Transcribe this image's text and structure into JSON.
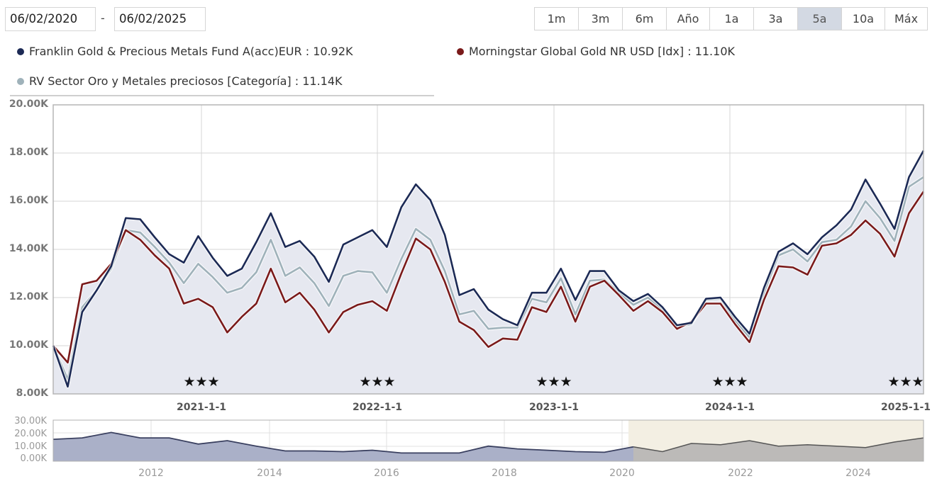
{
  "date_range": {
    "from": "06/02/2020",
    "separator": "-",
    "to": "06/02/2025"
  },
  "range_buttons": [
    {
      "label": "1m",
      "active": false
    },
    {
      "label": "3m",
      "active": false
    },
    {
      "label": "6m",
      "active": false
    },
    {
      "label": "Año",
      "active": false
    },
    {
      "label": "1a",
      "active": false
    },
    {
      "label": "3a",
      "active": false
    },
    {
      "label": "5a",
      "active": true
    },
    {
      "label": "10a",
      "active": false
    },
    {
      "label": "Máx",
      "active": false
    }
  ],
  "legend": [
    {
      "label": "Franklin Gold & Precious Metals Fund A(acc)EUR : 10.92K",
      "color": "#1c2a55"
    },
    {
      "label": "Morningstar Global Gold NR USD [Idx] : 11.10K",
      "color": "#7a1a1a"
    },
    {
      "label": "RV Sector Oro y Metales preciosos [Categoría] : 11.14K",
      "color": "#9fb2ba"
    }
  ],
  "star_rating": "★★★",
  "chart_data": [
    {
      "type": "line",
      "title": "",
      "xlabel": "",
      "ylabel": "",
      "ylim": [
        8000,
        20000
      ],
      "y_ticks": [
        "20.00K",
        "18.00K",
        "16.00K",
        "14.00K",
        "12.00K",
        "10.00K",
        "8.00K"
      ],
      "x_ticks": [
        "2021-1-1",
        "2022-1-1",
        "2023-1-1",
        "2024-1-1",
        "2025-1-1"
      ],
      "grid": true,
      "legend_position": "top",
      "annotations": [
        "★★★ rating markers near 2021-1-1, 2022-1-1, 2023-1-1, 2024-1-1, 2025-1-1"
      ],
      "x": [
        "2020-02",
        "2020-03",
        "2020-04",
        "2020-05",
        "2020-06",
        "2020-07",
        "2020-08",
        "2020-09",
        "2020-10",
        "2020-11",
        "2020-12",
        "2021-01",
        "2021-02",
        "2021-03",
        "2021-04",
        "2021-05",
        "2021-06",
        "2021-07",
        "2021-08",
        "2021-09",
        "2021-10",
        "2021-11",
        "2021-12",
        "2022-01",
        "2022-02",
        "2022-03",
        "2022-04",
        "2022-05",
        "2022-06",
        "2022-07",
        "2022-08",
        "2022-09",
        "2022-10",
        "2022-11",
        "2022-12",
        "2023-01",
        "2023-02",
        "2023-03",
        "2023-04",
        "2023-05",
        "2023-06",
        "2023-07",
        "2023-08",
        "2023-09",
        "2023-10",
        "2023-11",
        "2023-12",
        "2024-01",
        "2024-02",
        "2024-03",
        "2024-04",
        "2024-05",
        "2024-06",
        "2024-07",
        "2024-08",
        "2024-09",
        "2024-10",
        "2024-11",
        "2024-12",
        "2025-01",
        "2025-02"
      ],
      "series": [
        {
          "name": "Franklin Gold & Precious Metals Fund A(acc)EUR",
          "color": "#1c2a55",
          "values": [
            10.0,
            8.3,
            11.4,
            12.3,
            13.3,
            15.3,
            15.25,
            14.5,
            13.8,
            13.45,
            14.55,
            13.65,
            12.9,
            13.2,
            14.3,
            15.5,
            14.1,
            14.35,
            13.7,
            12.65,
            14.2,
            14.5,
            14.8,
            14.1,
            15.75,
            16.7,
            16.05,
            14.6,
            12.1,
            12.35,
            11.5,
            11.1,
            10.85,
            12.2,
            12.2,
            13.2,
            11.9,
            13.1,
            13.1,
            12.3,
            11.85,
            12.15,
            11.6,
            10.85,
            10.95,
            11.95,
            12.0,
            11.2,
            10.5,
            12.4,
            13.9,
            14.25,
            13.8,
            14.5,
            15.0,
            15.65,
            16.9,
            15.9,
            14.85,
            17.0,
            18.1
          ]
        },
        {
          "name": "Morningstar Global Gold NR USD [Idx]",
          "color": "#7a1a1a",
          "values": [
            10.0,
            9.3,
            12.55,
            12.7,
            13.4,
            14.8,
            14.4,
            13.75,
            13.2,
            11.75,
            11.95,
            11.6,
            10.55,
            11.2,
            11.75,
            13.2,
            11.8,
            12.2,
            11.5,
            10.55,
            11.4,
            11.7,
            11.85,
            11.45,
            13.0,
            14.45,
            14.0,
            12.65,
            11.0,
            10.65,
            9.95,
            10.3,
            10.25,
            11.6,
            11.4,
            12.45,
            11.0,
            12.45,
            12.7,
            12.1,
            11.45,
            11.85,
            11.4,
            10.7,
            11.0,
            11.75,
            11.75,
            10.9,
            10.15,
            11.9,
            13.3,
            13.25,
            12.95,
            14.15,
            14.25,
            14.6,
            15.2,
            14.65,
            13.7,
            15.5,
            16.4
          ]
        },
        {
          "name": "RV Sector Oro y Metales preciosos [Categoría]",
          "color": "#9fb2ba",
          "values": [
            10.0,
            8.6,
            11.6,
            12.3,
            13.2,
            14.8,
            14.7,
            14.1,
            13.45,
            12.6,
            13.4,
            12.85,
            12.2,
            12.4,
            13.05,
            14.4,
            12.9,
            13.25,
            12.6,
            11.65,
            12.9,
            13.1,
            13.05,
            12.2,
            13.6,
            14.85,
            14.4,
            13.1,
            11.3,
            11.45,
            10.7,
            10.75,
            10.75,
            11.95,
            11.8,
            12.8,
            11.3,
            12.7,
            12.75,
            12.2,
            11.7,
            12.0,
            11.5,
            10.75,
            10.9,
            11.9,
            11.95,
            11.05,
            10.35,
            12.2,
            13.75,
            14.0,
            13.5,
            14.3,
            14.4,
            14.95,
            16.0,
            15.3,
            14.35,
            16.6,
            17.0
          ]
        }
      ]
    },
    {
      "type": "area",
      "title": "navigator",
      "ylim": [
        0,
        30000
      ],
      "y_ticks": [
        "30.00K",
        "20.00K",
        "10.00K",
        "0.00K"
      ],
      "x_ticks": [
        "2012",
        "2014",
        "2016",
        "2018",
        "2020",
        "2022",
        "2024"
      ],
      "selected_range": [
        "2020-02",
        "2025-02"
      ],
      "x": [
        "2010-06",
        "2011-01",
        "2011-06",
        "2012-01",
        "2012-06",
        "2012-10",
        "2013-03",
        "2013-08",
        "2014-01",
        "2014-06",
        "2015-01",
        "2015-06",
        "2016-01",
        "2016-06",
        "2017-01",
        "2017-06",
        "2018-01",
        "2018-06",
        "2019-01",
        "2019-06",
        "2020-02",
        "2020-06",
        "2021-01",
        "2021-06",
        "2022-01",
        "2022-06",
        "2023-01",
        "2023-06",
        "2024-01",
        "2024-06",
        "2025-02"
      ],
      "values": [
        16,
        17,
        21,
        17,
        17,
        12.5,
        15,
        11,
        7.5,
        7.5,
        7,
        8,
        6,
        6,
        6,
        11,
        9,
        8,
        7,
        6.5,
        10.5,
        7,
        13,
        12,
        15,
        11,
        12,
        11,
        10,
        14,
        17
      ]
    }
  ]
}
